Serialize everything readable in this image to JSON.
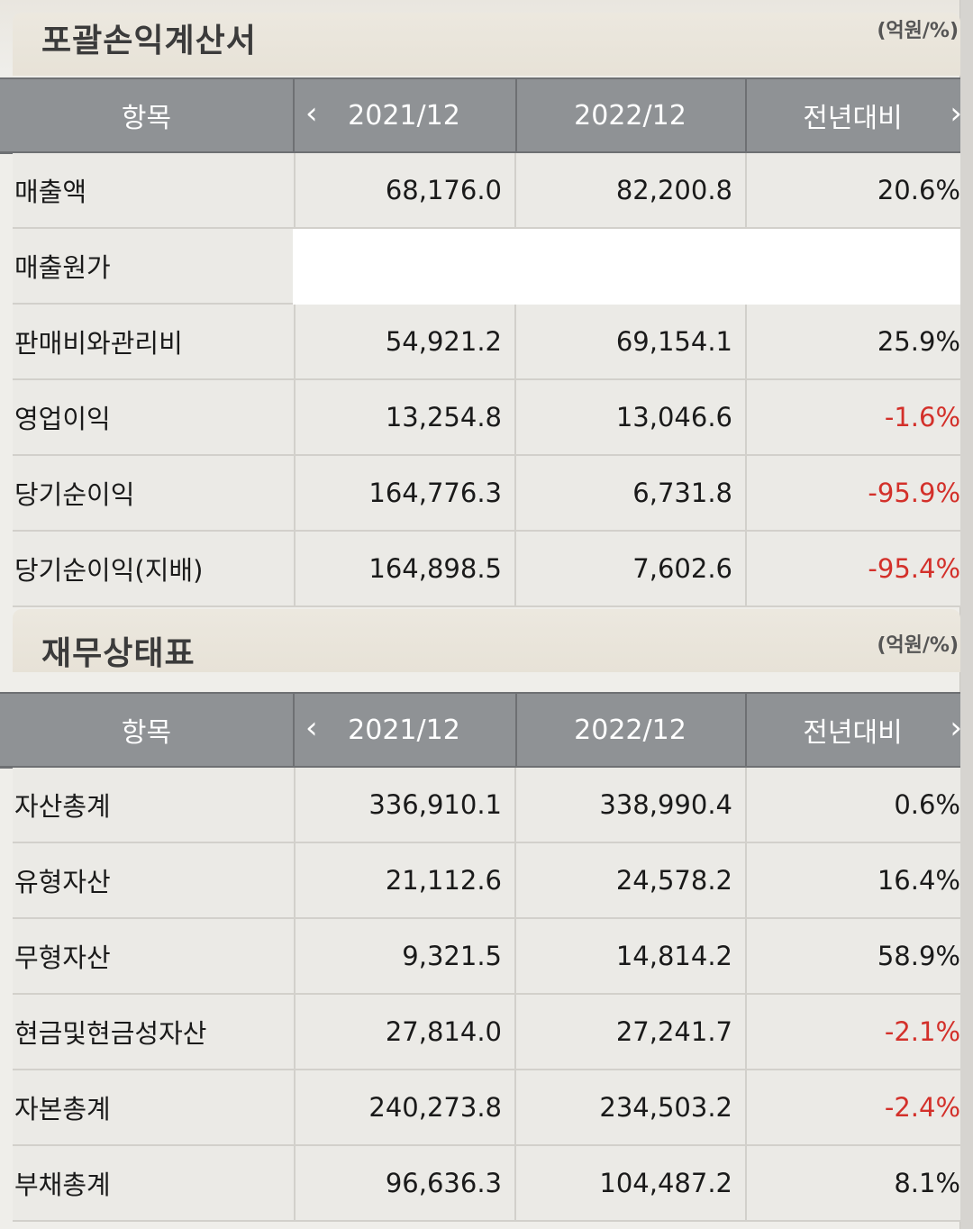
{
  "income": {
    "title": "포괄손익계산서",
    "unit": "(억원/%)",
    "headers": [
      "항목",
      "2021/12",
      "2022/12",
      "전년대비"
    ],
    "rows": [
      {
        "label": "매출액",
        "v1": "68,176.0",
        "v2": "82,200.8",
        "v3": "20.6%"
      },
      {
        "label": "매출원가",
        "v1": "",
        "v2": "",
        "v3": ""
      },
      {
        "label": "판매비와관리비",
        "v1": "54,921.2",
        "v2": "69,154.1",
        "v3": "25.9%"
      },
      {
        "label": "영업이익",
        "v1": "13,254.8",
        "v2": "13,046.6",
        "v3": "-1.6%"
      },
      {
        "label": "당기순이익",
        "v1": "164,776.3",
        "v2": "6,731.8",
        "v3": "-95.9%"
      },
      {
        "label": "당기순이익(지배)",
        "v1": "164,898.5",
        "v2": "7,602.6",
        "v3": "-95.4%"
      }
    ]
  },
  "balance": {
    "title": "재무상태표",
    "unit": "(억원/%)",
    "headers": [
      "항목",
      "2021/12",
      "2022/12",
      "전년대비"
    ],
    "rows": [
      {
        "label": "자산총계",
        "v1": "336,910.1",
        "v2": "338,990.4",
        "v3": "0.6%"
      },
      {
        "label": "유형자산",
        "v1": "21,112.6",
        "v2": "24,578.2",
        "v3": "16.4%"
      },
      {
        "label": "무형자산",
        "v1": "9,321.5",
        "v2": "14,814.2",
        "v3": "58.9%"
      },
      {
        "label": "현금및현금성자산",
        "v1": "27,814.0",
        "v2": "27,241.7",
        "v3": "-2.1%"
      },
      {
        "label": "자본총계",
        "v1": "240,273.8",
        "v2": "234,503.2",
        "v3": "-2.4%"
      },
      {
        "label": "부채총계",
        "v1": "96,636.3",
        "v2": "104,487.2",
        "v3": "8.1%"
      }
    ]
  },
  "colors": {
    "negative": "#d3302a",
    "header_bg": "#8f9295"
  },
  "icons": {
    "prev": "chevron-left-icon",
    "next": "chevron-right-icon"
  }
}
